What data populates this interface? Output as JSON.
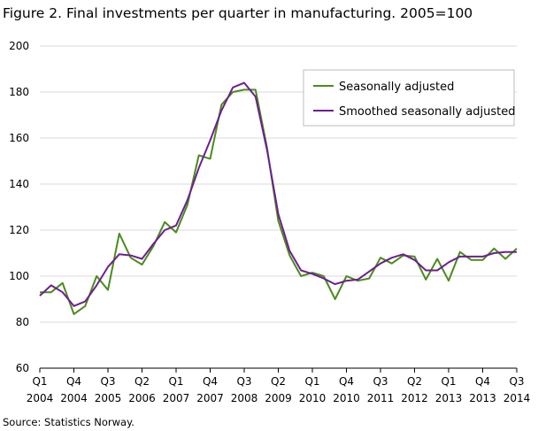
{
  "title": "Figure 2. Final investments per quarter in manufacturing. 2005=100",
  "source": "Source: Statistics Norway.",
  "chart_data": {
    "type": "line",
    "ylim": [
      60,
      200
    ],
    "yticks": [
      60,
      80,
      100,
      120,
      140,
      160,
      180,
      200
    ],
    "grid": true,
    "legend_position": "top-right",
    "x_tick_labels": [
      {
        "index": 0,
        "quarter": "Q1",
        "year": "2004"
      },
      {
        "index": 3,
        "quarter": "Q4",
        "year": "2004"
      },
      {
        "index": 6,
        "quarter": "Q3",
        "year": "2005"
      },
      {
        "index": 9,
        "quarter": "Q2",
        "year": "2006"
      },
      {
        "index": 12,
        "quarter": "Q1",
        "year": "2007"
      },
      {
        "index": 15,
        "quarter": "Q4",
        "year": "2007"
      },
      {
        "index": 18,
        "quarter": "Q3",
        "year": "2008"
      },
      {
        "index": 21,
        "quarter": "Q2",
        "year": "2009"
      },
      {
        "index": 24,
        "quarter": "Q1",
        "year": "2010"
      },
      {
        "index": 27,
        "quarter": "Q4",
        "year": "2010"
      },
      {
        "index": 30,
        "quarter": "Q3",
        "year": "2011"
      },
      {
        "index": 33,
        "quarter": "Q2",
        "year": "2012"
      },
      {
        "index": 36,
        "quarter": "Q1",
        "year": "2013"
      },
      {
        "index": 39,
        "quarter": "Q4",
        "year": "2013"
      },
      {
        "index": 42,
        "quarter": "Q3",
        "year": "2014"
      }
    ],
    "series": [
      {
        "name": "Seasonally adjusted",
        "color": "#4a8c1c",
        "values": [
          93,
          93,
          97,
          83.5,
          87,
          100,
          94,
          118.5,
          108,
          105,
          113,
          123.5,
          119,
          131,
          152.5,
          151,
          174.5,
          180,
          181,
          181,
          156,
          124,
          109,
          100,
          101.5,
          100,
          90,
          100,
          98,
          99,
          108,
          105.5,
          109,
          108.5,
          98.5,
          107.5,
          98,
          110.5,
          107,
          107,
          112,
          107.5,
          112
        ]
      },
      {
        "name": "Smoothed seasonally adjusted",
        "color": "#6d1f8f",
        "values": [
          91.5,
          96,
          93,
          87,
          89,
          96,
          104,
          109.5,
          109,
          107.5,
          114,
          120,
          122,
          133,
          147,
          159,
          172,
          182,
          184,
          178,
          155,
          127,
          111,
          102.5,
          101,
          99,
          96.5,
          98,
          98.5,
          102,
          105.5,
          108,
          109.5,
          107,
          102.5,
          102.5,
          106,
          108.5,
          108.5,
          108.5,
          110,
          110.5,
          110.5
        ]
      }
    ]
  }
}
